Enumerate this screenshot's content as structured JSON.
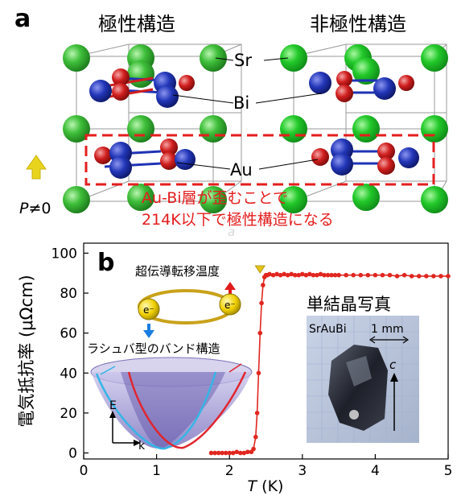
{
  "panel_a": {
    "label": "a",
    "left_title": "極性構造",
    "right_title": "非極性構造",
    "atom_labels": {
      "sr": "Sr",
      "bi": "Bi",
      "au": "Au"
    },
    "polarization": {
      "p": "P",
      "rest": "≠0"
    },
    "annotation": [
      "Au-Bi層が歪むことで",
      "214K以下で極性構造になる"
    ],
    "colors": {
      "sr": "#2fae2f",
      "bi": "#1f33b5",
      "au": "#d01e1e",
      "accent": "#e41e1e",
      "arrow": "#e8d41c"
    },
    "watermark": "a"
  },
  "panel_b": {
    "label": "b",
    "tc_label": "超伝導転移温度",
    "inset_band_title": "ラシュバ型のバンド構造",
    "electron_symbol": "e⁻",
    "axis_e": "E",
    "axis_k": "k",
    "photo_title": "単結晶写真",
    "photo_sample": "SrAuBi",
    "photo_scale": "1 mm",
    "photo_axis": "c"
  },
  "chart_data": {
    "type": "scatter",
    "xlabel_italic": "T",
    "xlabel_rest": " (K)",
    "ylabel": "電気抵抗率 (μΩcm)",
    "xlim": [
      0,
      5
    ],
    "ylim": [
      -3,
      105
    ],
    "xticks": [
      0,
      1,
      2,
      3,
      4,
      5
    ],
    "yticks": [
      0,
      20,
      40,
      60,
      80,
      100
    ],
    "series": [
      {
        "color": "#e0261f",
        "x": [
          1.75,
          1.8,
          1.85,
          1.9,
          1.95,
          2.0,
          2.05,
          2.1,
          2.15,
          2.2,
          2.25,
          2.3,
          2.33,
          2.36,
          2.38,
          2.4,
          2.42,
          2.44,
          2.46,
          2.48,
          2.5,
          2.52,
          2.55,
          2.6,
          2.65,
          2.7,
          2.75,
          2.8,
          2.85,
          2.9,
          2.95,
          3.0,
          3.05,
          3.1,
          3.15,
          3.2,
          3.25,
          3.3,
          3.35,
          3.4,
          3.45,
          3.5,
          3.6,
          3.7,
          3.8,
          3.9,
          4.0,
          4.1,
          4.2,
          4.3,
          4.4,
          4.5,
          4.6,
          4.7,
          4.8,
          4.9,
          5.0
        ],
        "y": [
          0,
          0,
          0,
          0,
          0,
          0,
          0,
          0.5,
          0,
          0,
          0.5,
          0.5,
          2,
          8,
          20,
          40,
          60,
          75,
          84,
          88,
          89,
          89,
          89.5,
          89,
          89.5,
          89,
          89.5,
          89,
          89.5,
          89,
          89,
          89.5,
          89,
          89.5,
          89,
          89,
          89.5,
          89,
          89,
          89,
          89,
          89,
          89,
          89,
          89,
          89,
          89,
          89,
          89,
          88.5,
          89,
          88.5,
          88.5,
          88.5,
          88.5,
          88.5,
          88.5
        ]
      }
    ],
    "tc_marker_x": 2.42
  }
}
